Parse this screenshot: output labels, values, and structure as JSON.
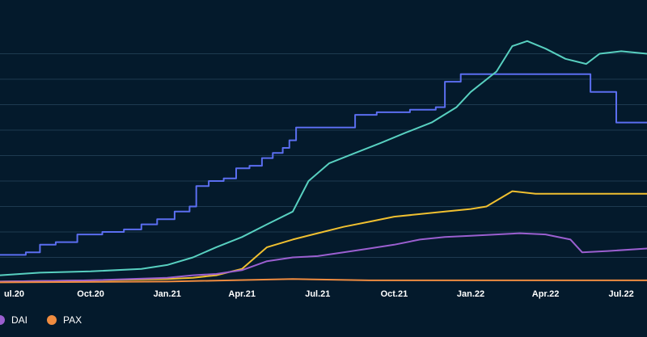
{
  "chart_data": {
    "type": "line",
    "title": "",
    "xlabel": "",
    "ylabel": "",
    "x_start": "2020-06-14",
    "x_end": "2022-08-01",
    "x_ticks": [
      {
        "date": "2020-07-01",
        "label": "ul.20"
      },
      {
        "date": "2020-10-01",
        "label": "Oct.20"
      },
      {
        "date": "2021-01-01",
        "label": "Jan.21"
      },
      {
        "date": "2021-04-01",
        "label": "Apr.21"
      },
      {
        "date": "2021-07-01",
        "label": "Jul.21"
      },
      {
        "date": "2021-10-01",
        "label": "Oct.21"
      },
      {
        "date": "2022-01-01",
        "label": "Jan.22"
      },
      {
        "date": "2022-04-01",
        "label": "Apr.22"
      },
      {
        "date": "2022-07-01",
        "label": "Jul.22"
      }
    ],
    "ylim": [
      0,
      10
    ],
    "y_gridlines": [
      1,
      2,
      3,
      4,
      5,
      6,
      7,
      8,
      9
    ],
    "grid": true,
    "legend_position": "bottom-left",
    "series": [
      {
        "name": "",
        "color": "#5b6ef0",
        "step": true,
        "points": [
          [
            "2020-06-14",
            1.1
          ],
          [
            "2020-07-15",
            1.2
          ],
          [
            "2020-08-01",
            1.5
          ],
          [
            "2020-08-20",
            1.6
          ],
          [
            "2020-09-15",
            1.9
          ],
          [
            "2020-10-15",
            2.0
          ],
          [
            "2020-11-10",
            2.1
          ],
          [
            "2020-12-01",
            2.3
          ],
          [
            "2020-12-20",
            2.5
          ],
          [
            "2021-01-10",
            2.8
          ],
          [
            "2021-01-28",
            3.0
          ],
          [
            "2021-02-05",
            3.8
          ],
          [
            "2021-02-20",
            4.0
          ],
          [
            "2021-03-10",
            4.1
          ],
          [
            "2021-03-25",
            4.5
          ],
          [
            "2021-04-10",
            4.6
          ],
          [
            "2021-04-25",
            4.9
          ],
          [
            "2021-05-08",
            5.1
          ],
          [
            "2021-05-20",
            5.3
          ],
          [
            "2021-05-28",
            5.6
          ],
          [
            "2021-06-05",
            6.1
          ],
          [
            "2021-08-15",
            6.6
          ],
          [
            "2021-09-10",
            6.7
          ],
          [
            "2021-10-20",
            6.8
          ],
          [
            "2021-11-20",
            6.9
          ],
          [
            "2021-12-01",
            7.9
          ],
          [
            "2021-12-20",
            8.2
          ],
          [
            "2022-01-01",
            8.2
          ],
          [
            "2022-05-25",
            7.5
          ],
          [
            "2022-06-25",
            6.3
          ],
          [
            "2022-08-01",
            6.3
          ]
        ]
      },
      {
        "name": "",
        "color": "#58d0c0",
        "step": false,
        "points": [
          [
            "2020-06-14",
            0.3
          ],
          [
            "2020-08-01",
            0.4
          ],
          [
            "2020-10-01",
            0.45
          ],
          [
            "2020-12-01",
            0.55
          ],
          [
            "2021-01-01",
            0.7
          ],
          [
            "2021-02-01",
            1.0
          ],
          [
            "2021-03-01",
            1.4
          ],
          [
            "2021-04-01",
            1.8
          ],
          [
            "2021-05-01",
            2.3
          ],
          [
            "2021-06-01",
            2.8
          ],
          [
            "2021-06-20",
            4.0
          ],
          [
            "2021-07-15",
            4.7
          ],
          [
            "2021-08-15",
            5.1
          ],
          [
            "2021-09-15",
            5.5
          ],
          [
            "2021-10-15",
            5.9
          ],
          [
            "2021-11-15",
            6.3
          ],
          [
            "2021-12-15",
            6.9
          ],
          [
            "2022-01-01",
            7.5
          ],
          [
            "2022-02-01",
            8.3
          ],
          [
            "2022-02-20",
            9.3
          ],
          [
            "2022-03-10",
            9.5
          ],
          [
            "2022-04-01",
            9.2
          ],
          [
            "2022-04-25",
            8.8
          ],
          [
            "2022-05-20",
            8.6
          ],
          [
            "2022-06-05",
            9.0
          ],
          [
            "2022-07-01",
            9.1
          ],
          [
            "2022-08-01",
            9.0
          ]
        ]
      },
      {
        "name": "",
        "color": "#f0c030",
        "step": false,
        "points": [
          [
            "2020-06-14",
            0.05
          ],
          [
            "2020-10-01",
            0.1
          ],
          [
            "2021-01-01",
            0.15
          ],
          [
            "2021-02-01",
            0.2
          ],
          [
            "2021-03-01",
            0.3
          ],
          [
            "2021-04-01",
            0.55
          ],
          [
            "2021-05-01",
            1.4
          ],
          [
            "2021-06-01",
            1.7
          ],
          [
            "2021-07-01",
            1.95
          ],
          [
            "2021-08-01",
            2.2
          ],
          [
            "2021-09-01",
            2.4
          ],
          [
            "2021-10-01",
            2.6
          ],
          [
            "2021-11-01",
            2.7
          ],
          [
            "2021-12-01",
            2.8
          ],
          [
            "2022-01-01",
            2.9
          ],
          [
            "2022-01-20",
            3.0
          ],
          [
            "2022-02-20",
            3.6
          ],
          [
            "2022-03-20",
            3.5
          ],
          [
            "2022-05-01",
            3.5
          ],
          [
            "2022-06-01",
            3.5
          ],
          [
            "2022-08-01",
            3.5
          ]
        ]
      },
      {
        "name": "DAI",
        "color": "#9b5fd0",
        "step": false,
        "points": [
          [
            "2020-06-14",
            0.05
          ],
          [
            "2020-10-01",
            0.1
          ],
          [
            "2021-01-01",
            0.2
          ],
          [
            "2021-02-01",
            0.3
          ],
          [
            "2021-03-01",
            0.35
          ],
          [
            "2021-04-01",
            0.5
          ],
          [
            "2021-05-01",
            0.85
          ],
          [
            "2021-06-01",
            1.0
          ],
          [
            "2021-07-01",
            1.05
          ],
          [
            "2021-08-01",
            1.2
          ],
          [
            "2021-09-01",
            1.35
          ],
          [
            "2021-10-01",
            1.5
          ],
          [
            "2021-11-01",
            1.7
          ],
          [
            "2021-12-01",
            1.8
          ],
          [
            "2022-01-01",
            1.85
          ],
          [
            "2022-02-01",
            1.9
          ],
          [
            "2022-03-01",
            1.95
          ],
          [
            "2022-04-01",
            1.9
          ],
          [
            "2022-05-01",
            1.7
          ],
          [
            "2022-05-15",
            1.2
          ],
          [
            "2022-06-15",
            1.25
          ],
          [
            "2022-08-01",
            1.35
          ]
        ]
      },
      {
        "name": "PAX",
        "color": "#f08c40",
        "step": false,
        "points": [
          [
            "2020-06-14",
            0.02
          ],
          [
            "2021-01-01",
            0.05
          ],
          [
            "2021-06-01",
            0.15
          ],
          [
            "2021-09-01",
            0.1
          ],
          [
            "2022-01-01",
            0.1
          ],
          [
            "2022-08-01",
            0.1
          ]
        ]
      }
    ],
    "legend": [
      {
        "name": "DAI",
        "color": "#9b5fd0"
      },
      {
        "name": "PAX",
        "color": "#f08c40"
      }
    ]
  }
}
